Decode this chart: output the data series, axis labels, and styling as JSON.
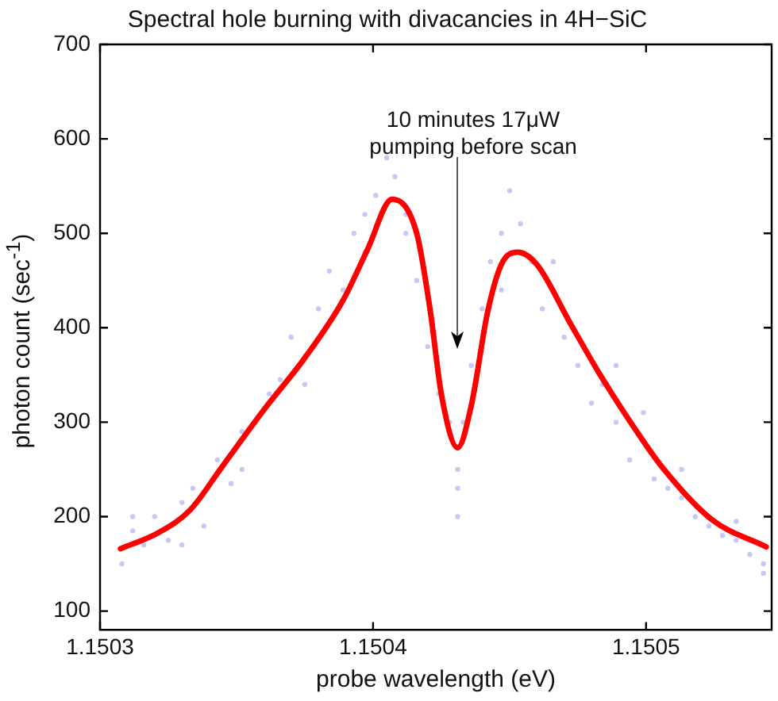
{
  "chart_data": {
    "type": "line",
    "title": "Spectral hole burning with divacancies in 4H−SiC",
    "xlabel": "probe wavelength (eV)",
    "ylabel": "photon count (sec$^{-1}$)",
    "xlim": [
      1.1503,
      1.150546
    ],
    "xticks": [
      1.1503,
      1.1504,
      1.1505
    ],
    "ylim": [
      80,
      700
    ],
    "yticks": [
      100,
      200,
      300,
      400,
      500,
      600,
      700
    ],
    "grid": false,
    "legend": false,
    "annotations": [
      "10 minutes 17μW\npumping before scan"
    ],
    "series": [
      {
        "type": "scatter",
        "color": "#c8c8f8",
        "marker": "circle",
        "x": [
          1.150308,
          1.150312,
          1.150316,
          1.15032,
          1.150325,
          1.15033,
          1.150334,
          1.150338,
          1.150343,
          1.150348,
          1.150352,
          1.150357,
          1.150362,
          1.150366,
          1.15037,
          1.150375,
          1.15038,
          1.150384,
          1.150389,
          1.150393,
          1.150397,
          1.150401,
          1.150405,
          1.150408,
          1.150412,
          1.150416,
          1.15042,
          1.150424,
          1.150428,
          1.150431,
          1.150433,
          1.150436,
          1.15044,
          1.150443,
          1.150447,
          1.15045,
          1.150454,
          1.150458,
          1.150462,
          1.150466,
          1.15047,
          1.150475,
          1.15048,
          1.150484,
          1.150489,
          1.150494,
          1.150499,
          1.150503,
          1.150508,
          1.150513,
          1.150518,
          1.150523,
          1.150528,
          1.150533,
          1.150538,
          1.150543,
          1.150312,
          1.15033,
          1.150352,
          1.150375,
          1.150397,
          1.150412,
          1.150447,
          1.150466,
          1.150489,
          1.150513,
          1.150533,
          1.150431,
          1.150431,
          1.150543
        ],
        "values": [
          150,
          185,
          170,
          200,
          175,
          215,
          230,
          190,
          260,
          235,
          290,
          300,
          330,
          345,
          390,
          370,
          420,
          460,
          440,
          500,
          520,
          540,
          580,
          560,
          500,
          450,
          380,
          330,
          300,
          250,
          300,
          360,
          420,
          470,
          500,
          545,
          510,
          470,
          420,
          440,
          390,
          360,
          320,
          340,
          300,
          260,
          310,
          240,
          230,
          220,
          200,
          190,
          180,
          175,
          160,
          150,
          200,
          170,
          250,
          340,
          480,
          520,
          440,
          470,
          360,
          250,
          195,
          200,
          230,
          140
        ]
      },
      {
        "color": "#ff0000",
        "marker": "none",
        "line_style": "solid",
        "x": [
          1.1503075,
          1.1503214,
          1.150333,
          1.1503445,
          1.15036,
          1.150375,
          1.150389,
          1.150398,
          1.150407,
          1.150416,
          1.150421,
          1.150425,
          1.150431,
          1.150436,
          1.150442,
          1.150447,
          1.150453,
          1.15046,
          1.150472,
          1.150483,
          1.150495,
          1.150506,
          1.150524,
          1.150544
        ],
        "values": [
          166,
          183,
          207,
          252,
          313,
          368,
          429,
          483,
          536,
          500,
          417,
          330,
          273,
          318,
          417,
          467,
          480,
          467,
          406,
          351,
          297,
          252,
          197,
          168
        ]
      }
    ]
  }
}
